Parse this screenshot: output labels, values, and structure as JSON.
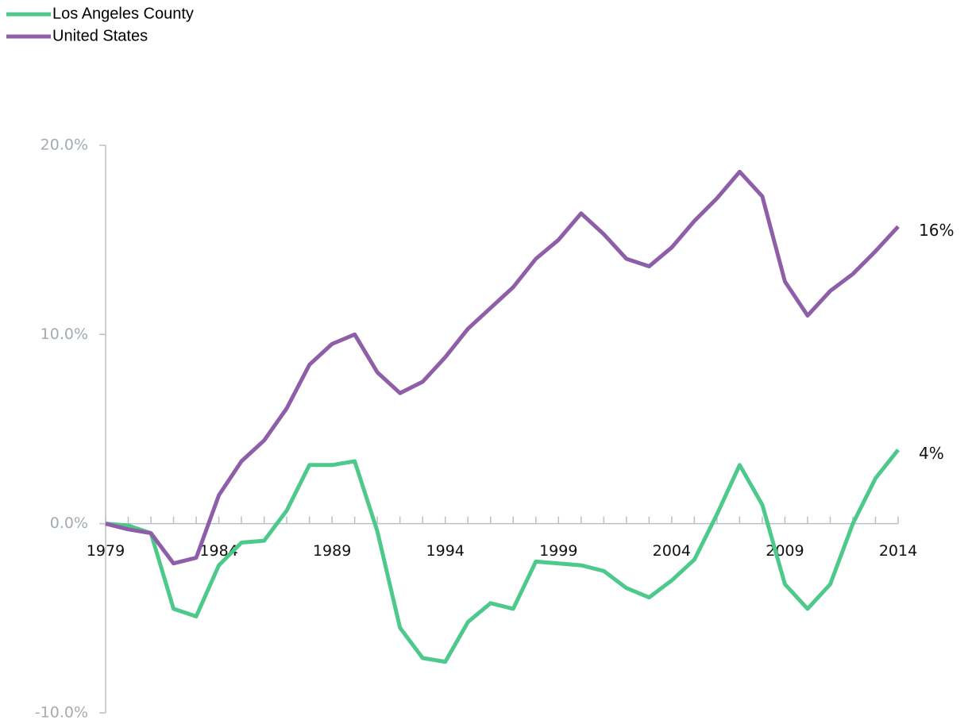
{
  "chart_data": {
    "type": "line",
    "x": [
      1979,
      1980,
      1981,
      1982,
      1983,
      1984,
      1985,
      1986,
      1987,
      1988,
      1989,
      1990,
      1991,
      1992,
      1993,
      1994,
      1995,
      1996,
      1997,
      1998,
      1999,
      2000,
      2001,
      2002,
      2003,
      2004,
      2005,
      2006,
      2007,
      2008,
      2009,
      2010,
      2011,
      2012,
      2013,
      2014
    ],
    "xlim": [
      1979,
      2014
    ],
    "xticks": [
      1979,
      1984,
      1989,
      1994,
      1999,
      2004,
      2009,
      2014
    ],
    "ylim": [
      -10,
      20
    ],
    "yticks": [
      {
        "value": -10,
        "label": "-10.0%"
      },
      {
        "value": 0,
        "label": "0.0%"
      },
      {
        "value": 10,
        "label": "10.0%"
      },
      {
        "value": 20,
        "label": "20.0%"
      }
    ],
    "grid": false,
    "legend": "top-left",
    "series": [
      {
        "name": "Los Angeles County",
        "color": "#4dc98b",
        "end_label": "4%",
        "values": [
          0,
          -0.1,
          -0.5,
          -4.5,
          -4.9,
          -2.2,
          -1.0,
          -0.9,
          0.7,
          3.1,
          3.1,
          3.3,
          -0.4,
          -5.5,
          -7.1,
          -7.3,
          -5.2,
          -4.2,
          -4.5,
          -2.0,
          -2.1,
          -2.2,
          -2.5,
          -3.4,
          -3.9,
          -3.0,
          -1.9,
          0.5,
          3.1,
          1.0,
          -3.2,
          -4.5,
          -3.2,
          0,
          2.4,
          3.9
        ]
      },
      {
        "name": "United States",
        "color": "#8e5ea8",
        "end_label": "16%",
        "values": [
          0,
          -0.3,
          -0.5,
          -2.1,
          -1.8,
          1.5,
          3.3,
          4.4,
          6.1,
          8.4,
          9.5,
          10.0,
          8.0,
          6.9,
          7.5,
          8.8,
          10.3,
          11.4,
          12.5,
          14.0,
          15.0,
          16.4,
          15.3,
          14.0,
          13.6,
          14.6,
          16.0,
          17.2,
          18.6,
          17.3,
          12.8,
          11.0,
          12.3,
          13.2,
          14.4,
          15.7
        ]
      }
    ]
  }
}
